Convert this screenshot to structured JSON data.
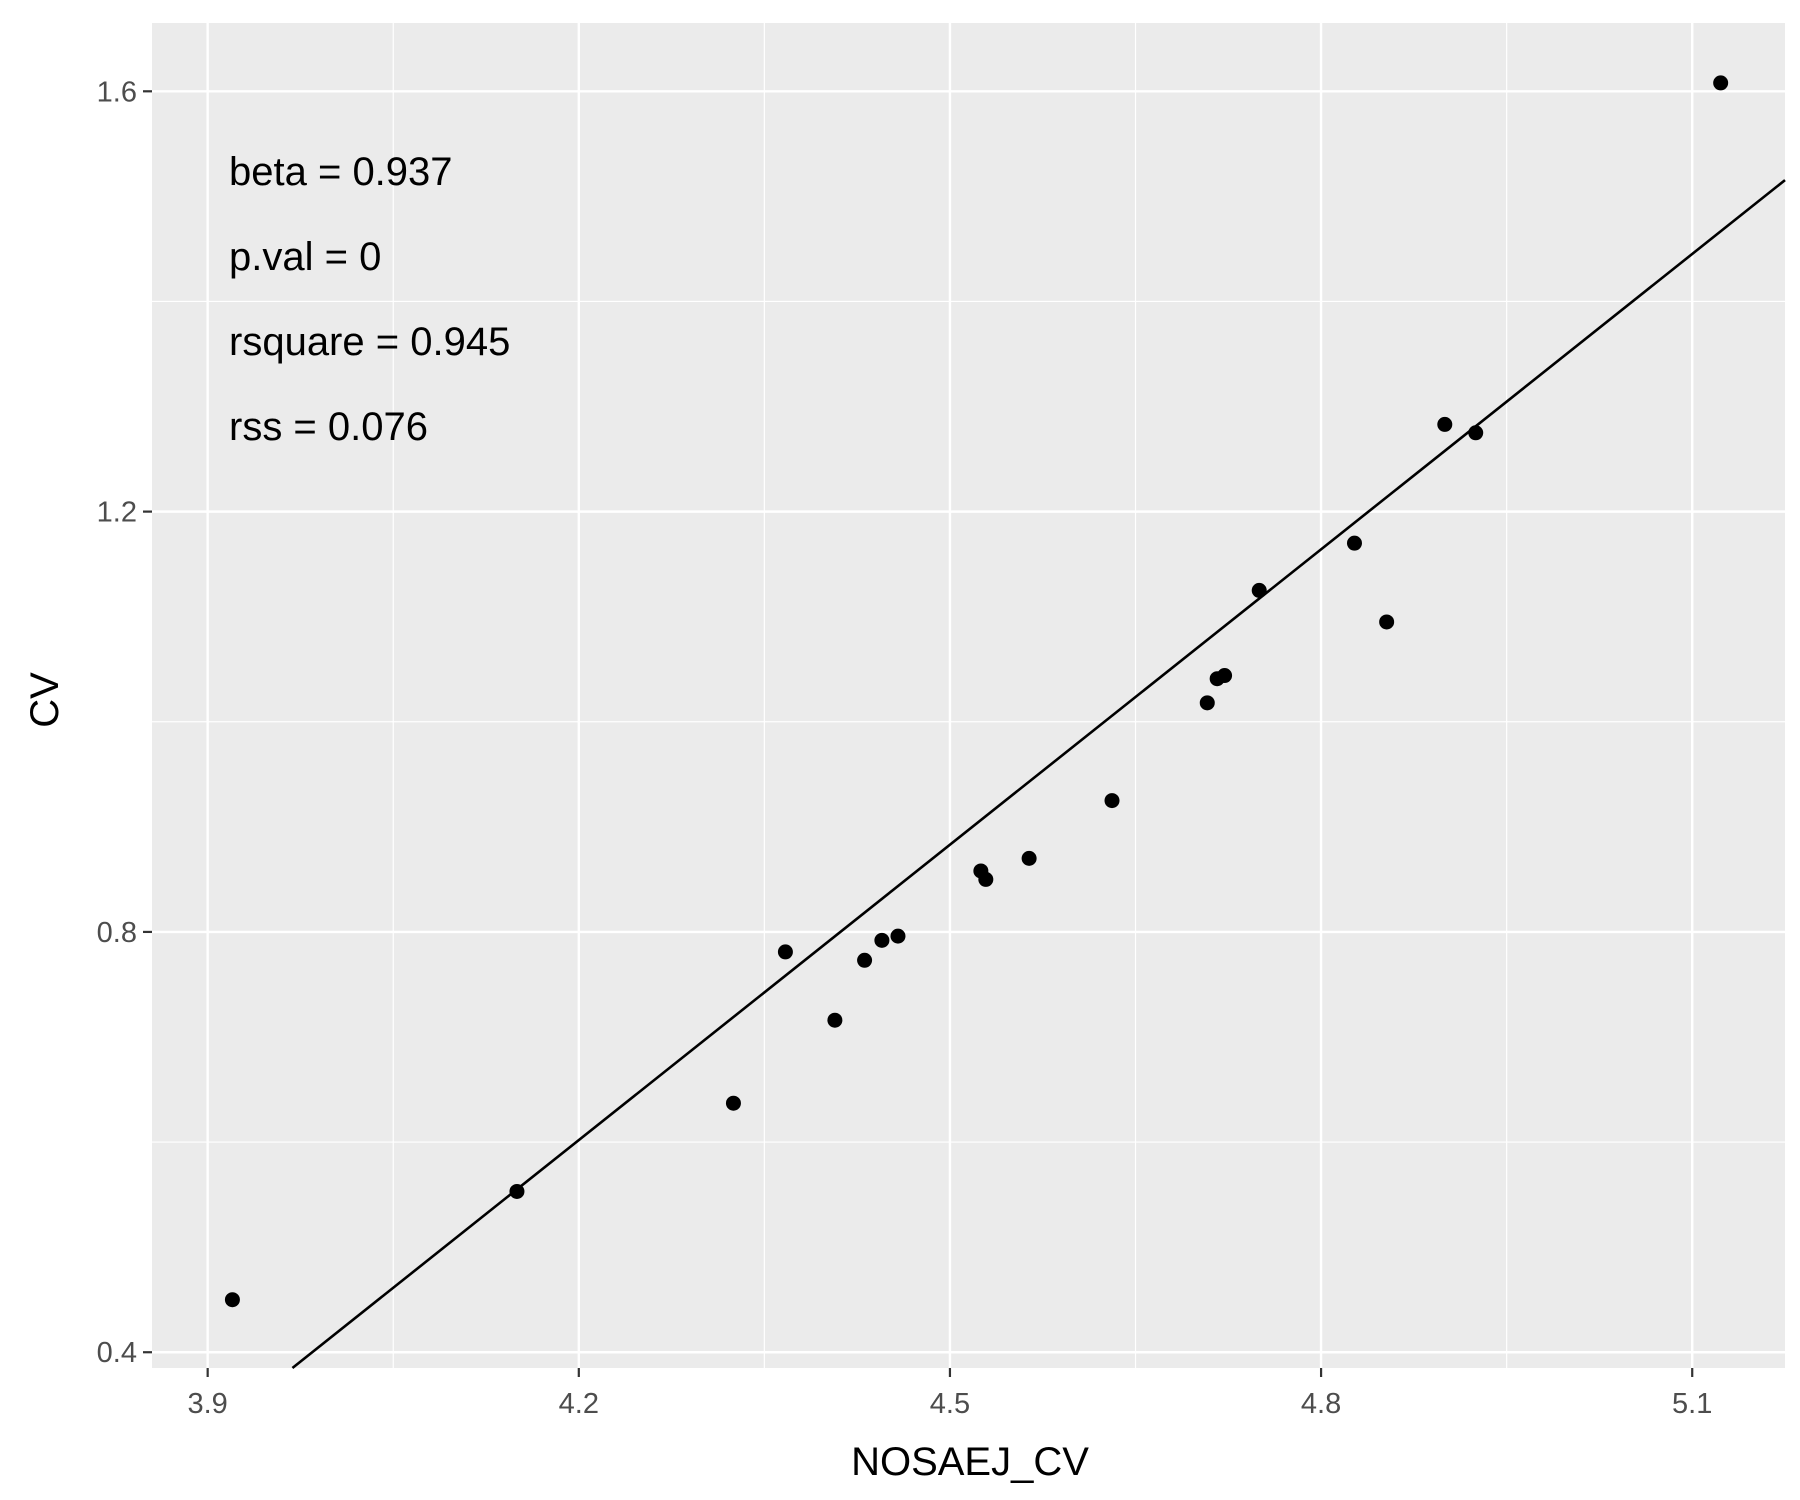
{
  "chart_data": {
    "type": "scatter",
    "title": "",
    "xlabel": "NOSAEJ_CV",
    "ylabel": "CV",
    "xlim": [
      3.855,
      5.175
    ],
    "ylim": [
      0.385,
      1.665
    ],
    "x_ticks": [
      3.9,
      4.2,
      4.5,
      4.8,
      5.1
    ],
    "x_tick_labels": [
      "3.9",
      "4.2",
      "4.5",
      "4.8",
      "5.1"
    ],
    "y_ticks": [
      0.4,
      0.8,
      1.2,
      1.6
    ],
    "y_tick_labels": [
      "0.4",
      "0.8",
      "1.2",
      "1.6"
    ],
    "grid": true,
    "background": "#ebebeb",
    "point_color": "#000000",
    "points": [
      {
        "x": 3.92,
        "y": 0.45
      },
      {
        "x": 4.15,
        "y": 0.553
      },
      {
        "x": 4.325,
        "y": 0.637
      },
      {
        "x": 4.367,
        "y": 0.781
      },
      {
        "x": 4.407,
        "y": 0.716
      },
      {
        "x": 4.431,
        "y": 0.773
      },
      {
        "x": 4.445,
        "y": 0.792
      },
      {
        "x": 4.458,
        "y": 0.796
      },
      {
        "x": 4.525,
        "y": 0.858
      },
      {
        "x": 4.529,
        "y": 0.85
      },
      {
        "x": 4.564,
        "y": 0.87
      },
      {
        "x": 4.631,
        "y": 0.925
      },
      {
        "x": 4.708,
        "y": 1.018
      },
      {
        "x": 4.716,
        "y": 1.041
      },
      {
        "x": 4.722,
        "y": 1.044
      },
      {
        "x": 4.75,
        "y": 1.125
      },
      {
        "x": 4.827,
        "y": 1.17
      },
      {
        "x": 4.853,
        "y": 1.095
      },
      {
        "x": 4.9,
        "y": 1.283
      },
      {
        "x": 4.925,
        "y": 1.275
      },
      {
        "x": 5.123,
        "y": 1.608
      }
    ],
    "fit_line": {
      "slope": 0.937,
      "intercept": -3.3335
    },
    "annotations": [
      "beta = 0.937",
      "p.val = 0",
      "rsquare = 0.945",
      "rss = 0.076"
    ]
  }
}
